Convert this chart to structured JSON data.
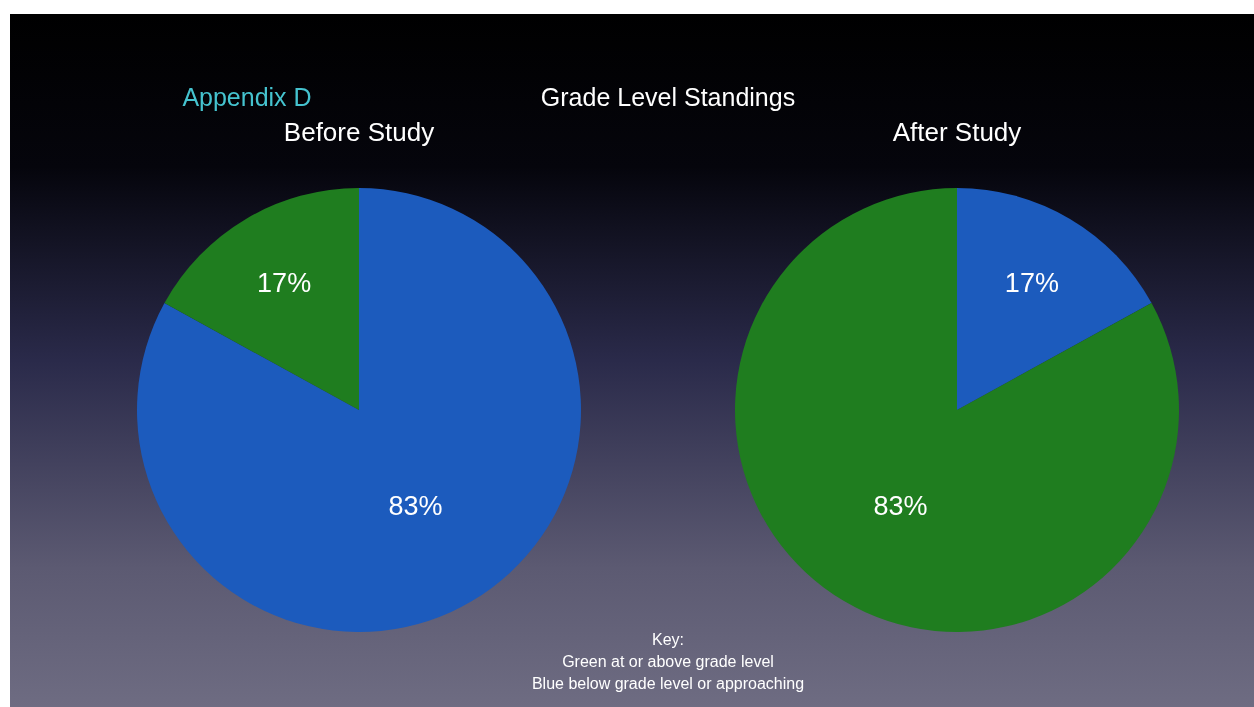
{
  "chart_data": [
    {
      "type": "pie",
      "title": "Before Study",
      "categories": [
        null,
        null
      ],
      "values": [
        83,
        17
      ],
      "colors": [
        "#1c5bbd",
        "#1f7d1f"
      ],
      "value_labels": [
        "83%",
        "17%"
      ],
      "legend": false
    },
    {
      "type": "pie",
      "title": "After Study",
      "categories": [
        null,
        null
      ],
      "values": [
        17,
        83
      ],
      "colors": [
        "#1c5bbd",
        "#1f7d1f"
      ],
      "value_labels": [
        "17%",
        "83%"
      ],
      "legend": false
    },
    {
      "type": "other",
      "title": "Grade Level Standings",
      "annotations": [
        "Appendix D",
        "Key:",
        "Green at or above grade level",
        "Blue below grade level or approaching"
      ]
    }
  ]
}
